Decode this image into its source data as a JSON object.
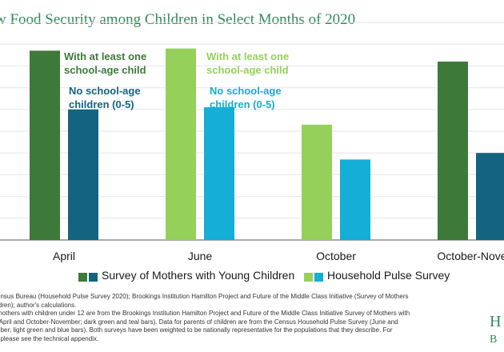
{
  "title": "w Food Security among Children in Select Months of 2020",
  "colors": {
    "dark_green": "#3d7a3a",
    "teal": "#13657f",
    "light_green": "#95d15a",
    "light_blue": "#14aed6",
    "gridline": "#e6e6e6",
    "axis": "#555555"
  },
  "chart_data": {
    "type": "bar",
    "categories": [
      "April",
      "June",
      "October",
      "October-Nove"
    ],
    "series": [
      {
        "name": "With at least one school-age child",
        "values": [
          87,
          88,
          53,
          82
        ]
      },
      {
        "name": "No school-age children (0-5)",
        "values": [
          60,
          61,
          37,
          40
        ]
      }
    ],
    "series_survey": [
      "Survey of Mothers with Young Children",
      "Household Pulse Survey",
      "Household Pulse Survey",
      "Survey of Mothers with Young Children"
    ],
    "ylim": [
      0,
      100
    ],
    "grid": true,
    "annotations": [
      {
        "category": "April",
        "lines": [
          "With at least one",
          "school-age child"
        ],
        "color": "dark_green"
      },
      {
        "category": "April",
        "lines": [
          "No school-age",
          "children (0-5)"
        ],
        "color": "teal"
      },
      {
        "category": "June",
        "lines": [
          "With at least one",
          "school-age child"
        ],
        "color": "light_green"
      },
      {
        "category": "June",
        "lines": [
          "No school-age",
          "children (0-5)"
        ],
        "color": "light_blue"
      }
    ]
  },
  "legend": [
    {
      "label": "Survey of Mothers with Young Children",
      "colors": [
        "#3d7a3a",
        "#13657f"
      ]
    },
    {
      "label": "Household Pulse Survey",
      "colors": [
        "#95d15a",
        "#14aed6"
      ]
    }
  ],
  "notes": [
    "ensus Bureau (Household Pulse Survey 2020); Brookings Institution Hamilton Project and Future of the Middle Class Initiative (Survey of Mothers",
    "ldren); author's calculations.",
    "mothers with children under 12 are from the Brookings Institution Hamilton Project and Future of the Middle Class Initiative Survey of Mothers with",
    "(April and October-November; dark green and teal bars). Data for parents of children are from the Census Household Pulse Survey (June and",
    "ober; light green and blue bars). Both surveys have been weighted to be nationally representative for the populations that they describe. For",
    ", please see the technical appendix."
  ],
  "logo": {
    "line1": "H",
    "line2": "B"
  }
}
